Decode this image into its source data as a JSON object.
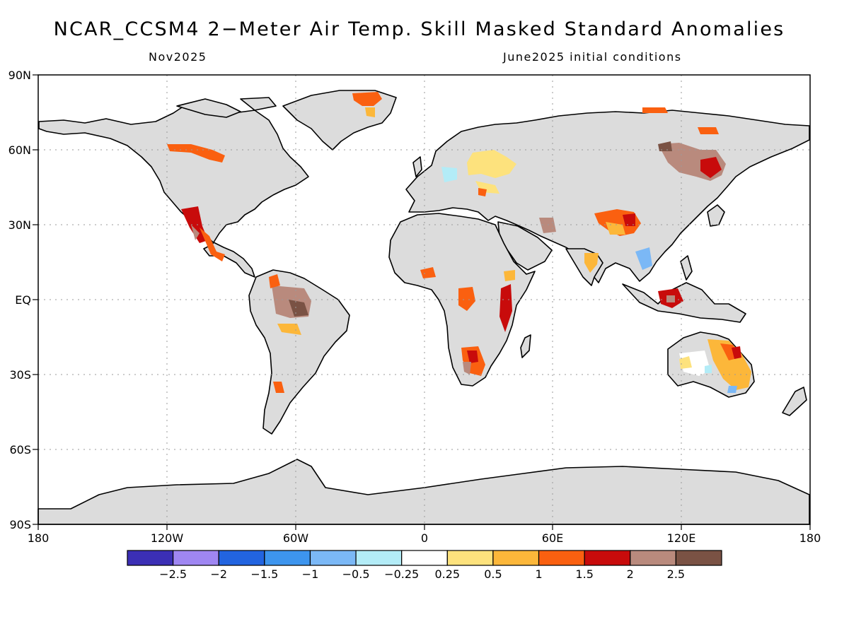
{
  "title": "NCAR_CCSM4 2−Meter Air Temp. Skill Masked Standard Anomalies",
  "subtitle_left": "Nov2025",
  "subtitle_right": "June2025 initial conditions",
  "map": {
    "land_color": "#dcdcdc",
    "ocean_color": "#ffffff",
    "lat_labels": [
      "90N",
      "60N",
      "30N",
      "EQ",
      "30S",
      "60S",
      "90S"
    ],
    "lon_labels": [
      "180",
      "120W",
      "60W",
      "0",
      "60E",
      "120E",
      "180"
    ]
  },
  "legend": {
    "colors": [
      "#3b2fb5",
      "#9f86f2",
      "#2264e0",
      "#3d95ee",
      "#7bb8f6",
      "#b3ecf7",
      "#ffffff",
      "#fde27d",
      "#fcb73a",
      "#fa6010",
      "#c80b0b",
      "#b98a7d",
      "#7a5244"
    ],
    "labels": [
      "−2.5",
      "−2",
      "−1.5",
      "−1",
      "−0.5",
      "−0.25",
      "0.25",
      "0.5",
      "1",
      "1.5",
      "2",
      "2.5"
    ]
  }
}
